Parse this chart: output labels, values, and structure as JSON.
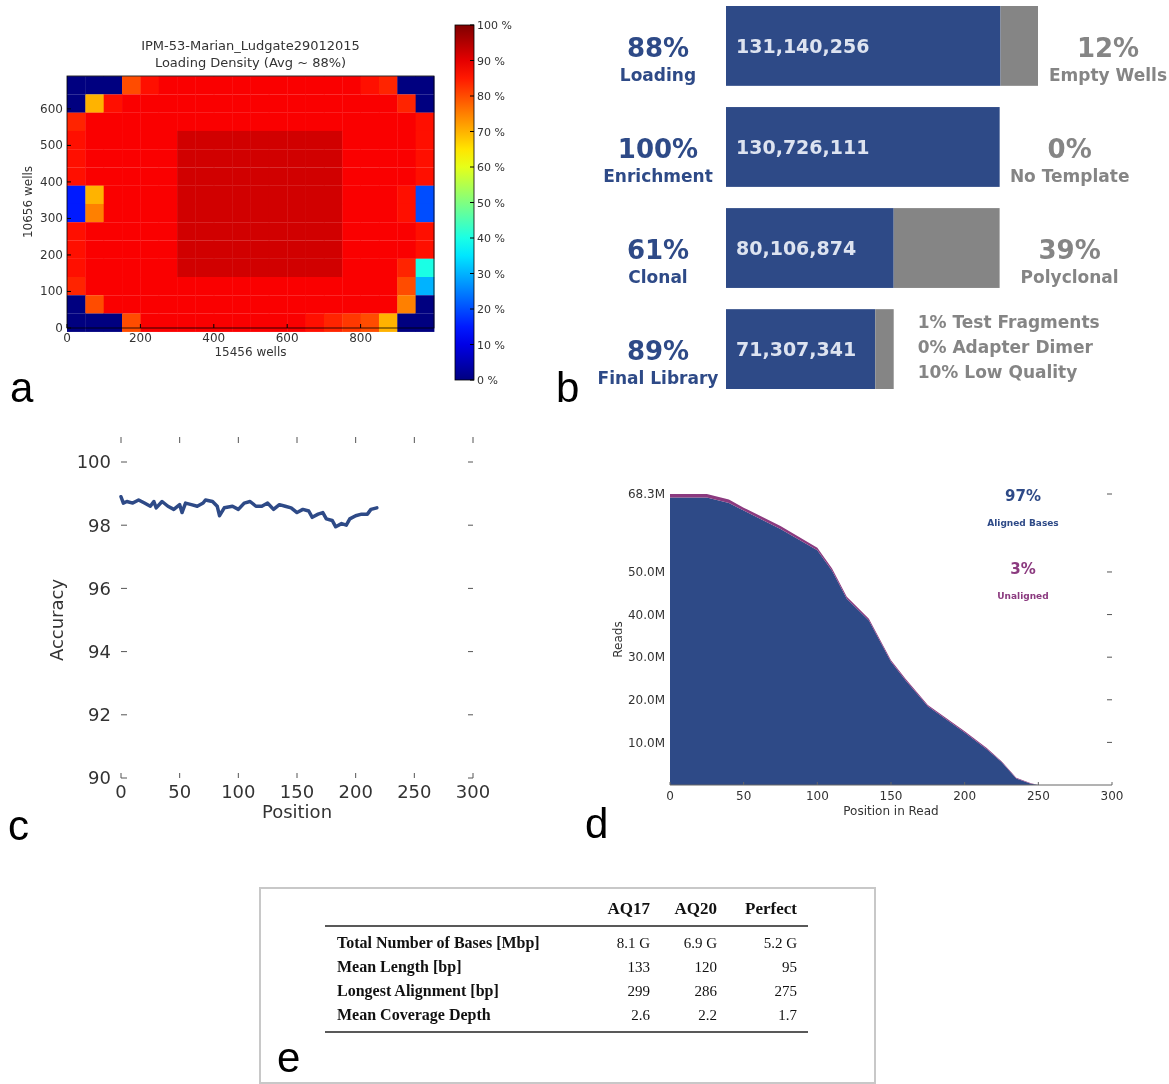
{
  "chart_data": [
    {
      "type": "heatmap",
      "title": "IPM-53-Marian_Ludgate29012015\nLoading Density (Avg ~ 88%)",
      "xlabel": "15456 wells",
      "ylabel": "10656 wells",
      "annotations": [
        "a"
      ],
      "x": [
        25,
        75,
        125,
        175,
        225,
        275,
        325,
        375,
        425,
        475,
        525,
        575,
        625,
        675,
        725,
        775,
        825,
        875,
        925,
        975
      ],
      "y": [
        665,
        615,
        565,
        515,
        465,
        415,
        365,
        315,
        265,
        215,
        165,
        115,
        65,
        15
      ],
      "xlim": [
        0,
        1000
      ],
      "xticks": [
        0,
        200,
        400,
        600,
        800
      ],
      "ylim": [
        0,
        690
      ],
      "yticks": [
        0,
        100,
        200,
        300,
        400,
        500,
        600
      ],
      "clim": [
        0,
        100
      ],
      "cticks": [
        {
          "value": 0,
          "label": "0 %"
        },
        {
          "value": 10,
          "label": "10 %"
        },
        {
          "value": 20,
          "label": "20 %"
        },
        {
          "value": 30,
          "label": "30 %"
        },
        {
          "value": 40,
          "label": "40 %"
        },
        {
          "value": 50,
          "label": "50 %"
        },
        {
          "value": 60,
          "label": "60 %"
        },
        {
          "value": 70,
          "label": "70 %"
        },
        {
          "value": 80,
          "label": "80 %"
        },
        {
          "value": 90,
          "label": "90 %"
        },
        {
          "value": 100,
          "label": "100 %"
        }
      ],
      "cells": [
        [
          0,
          0,
          0,
          80,
          86,
          88,
          88,
          88,
          88,
          88,
          88,
          88,
          88,
          88,
          88,
          88,
          86,
          84,
          0,
          0
        ],
        [
          0,
          70,
          86,
          88,
          88,
          88,
          88,
          88,
          88,
          88,
          88,
          88,
          88,
          88,
          88,
          88,
          88,
          88,
          84,
          0
        ],
        [
          84,
          88,
          88,
          88,
          88,
          88,
          88,
          88,
          88,
          88,
          88,
          88,
          88,
          88,
          88,
          88,
          88,
          88,
          88,
          86
        ],
        [
          86,
          88,
          88,
          88,
          88,
          88,
          92,
          92,
          92,
          92,
          92,
          92,
          92,
          92,
          92,
          88,
          88,
          88,
          88,
          86
        ],
        [
          86,
          88,
          88,
          88,
          88,
          88,
          92,
          92,
          92,
          92,
          92,
          92,
          92,
          92,
          92,
          88,
          88,
          88,
          88,
          86
        ],
        [
          86,
          88,
          88,
          88,
          88,
          88,
          92,
          92,
          92,
          92,
          92,
          92,
          92,
          92,
          92,
          88,
          88,
          88,
          88,
          86
        ],
        [
          15,
          70,
          88,
          88,
          88,
          88,
          92,
          92,
          92,
          92,
          92,
          92,
          92,
          92,
          92,
          88,
          88,
          88,
          86,
          20
        ],
        [
          15,
          75,
          88,
          88,
          88,
          88,
          92,
          92,
          92,
          92,
          92,
          92,
          92,
          92,
          92,
          88,
          88,
          88,
          86,
          20
        ],
        [
          86,
          88,
          88,
          88,
          88,
          88,
          92,
          92,
          92,
          92,
          92,
          92,
          92,
          92,
          92,
          88,
          88,
          88,
          88,
          86
        ],
        [
          86,
          88,
          88,
          88,
          88,
          88,
          92,
          92,
          92,
          92,
          92,
          92,
          92,
          92,
          92,
          88,
          88,
          88,
          88,
          86
        ],
        [
          86,
          88,
          88,
          88,
          88,
          88,
          92,
          92,
          92,
          92,
          92,
          92,
          92,
          92,
          92,
          88,
          88,
          88,
          84,
          40
        ],
        [
          84,
          88,
          88,
          88,
          88,
          88,
          88,
          88,
          88,
          88,
          88,
          88,
          88,
          88,
          88,
          88,
          88,
          88,
          80,
          30
        ],
        [
          0,
          80,
          88,
          88,
          88,
          88,
          88,
          88,
          88,
          88,
          88,
          88,
          88,
          88,
          88,
          88,
          88,
          88,
          75,
          0
        ],
        [
          0,
          0,
          0,
          80,
          88,
          88,
          88,
          88,
          88,
          88,
          88,
          88,
          88,
          86,
          84,
          82,
          80,
          70,
          0,
          0
        ]
      ]
    },
    {
      "type": "bar",
      "orientation": "horizontal",
      "stacked": true,
      "categories": [
        "Loading",
        "Enrichment",
        "Clonal",
        "Final Library"
      ],
      "series": [
        {
          "color": "#2e4a87",
          "values": [
            131140256,
            130726111,
            80106874,
            71307341
          ],
          "value_labels": [
            "131,140,256",
            "130,726,111",
            "80,106,874",
            "71,307,341"
          ]
        },
        {
          "color": "#858585",
          "values": [
            17900000,
            0,
            50600000,
            8800000
          ]
        }
      ],
      "annotations": [
        "b",
        {
          "text": "88%",
          "x": 0,
          "y": "Loading"
        },
        {
          "text": "100%",
          "x": 0,
          "y": "Enrichment"
        },
        {
          "text": "61%",
          "x": 0,
          "y": "Clonal"
        },
        {
          "text": "89%",
          "x": 0,
          "y": "Final Library"
        },
        {
          "text": "12%",
          "x": 149040256,
          "y": "Loading"
        },
        {
          "text": "Empty Wells",
          "x": 149040256,
          "y": "Loading"
        },
        {
          "text": "0%",
          "x": 130726111,
          "y": "Enrichment"
        },
        {
          "text": "No Template",
          "x": 130726111,
          "y": "Enrichment"
        },
        {
          "text": "39%",
          "x": 130706874,
          "y": "Clonal"
        },
        {
          "text": "Polyclonal",
          "x": 130706874,
          "y": "Clonal"
        },
        "1% Test Fragments",
        "0% Adapter Dimer",
        "10% Low Quality"
      ]
    },
    {
      "type": "line",
      "xlabel": "Position",
      "ylabel": "Accuracy",
      "annotations": [
        "c"
      ],
      "xlim": [
        0,
        300
      ],
      "xticks": [
        0,
        50,
        100,
        150,
        200,
        250,
        300
      ],
      "ylim": [
        90,
        100
      ],
      "yticks": [
        90,
        92,
        94,
        96,
        98,
        100
      ],
      "x": [
        0,
        2,
        5,
        10,
        15,
        20,
        25,
        28,
        30,
        35,
        40,
        45,
        50,
        52,
        55,
        60,
        65,
        70,
        72,
        78,
        82,
        84,
        88,
        95,
        100,
        105,
        110,
        115,
        120,
        125,
        130,
        135,
        140,
        145,
        150,
        155,
        160,
        163,
        168,
        172,
        175,
        180,
        183,
        188,
        192,
        195,
        200,
        205,
        210,
        213,
        218
      ],
      "series": [
        {
          "color": "#2e4a87",
          "values": [
            98.9,
            98.7,
            98.75,
            98.7,
            98.8,
            98.7,
            98.6,
            98.75,
            98.55,
            98.75,
            98.6,
            98.5,
            98.65,
            98.4,
            98.7,
            98.65,
            98.6,
            98.7,
            98.8,
            98.75,
            98.6,
            98.3,
            98.55,
            98.6,
            98.5,
            98.7,
            98.75,
            98.6,
            98.6,
            98.7,
            98.5,
            98.65,
            98.6,
            98.55,
            98.4,
            98.5,
            98.45,
            98.25,
            98.35,
            98.4,
            98.2,
            98.15,
            97.95,
            98.05,
            98.0,
            98.2,
            98.3,
            98.35,
            98.35,
            98.5,
            98.55
          ]
        }
      ]
    },
    {
      "type": "area",
      "stacked": true,
      "xlabel": "Position in Read",
      "ylabel": "Reads",
      "legend": "top right",
      "annotations": [
        "d",
        "97%",
        "3%"
      ],
      "xlim": [
        0,
        300
      ],
      "xticks": [
        0,
        50,
        100,
        150,
        200,
        250,
        300
      ],
      "ylim": [
        0,
        68.3
      ],
      "yticks": [
        {
          "value": 10,
          "label": "10.0M"
        },
        {
          "value": 20,
          "label": "20.0M"
        },
        {
          "value": 30,
          "label": "30.0M"
        },
        {
          "value": 40,
          "label": "40.0M"
        },
        {
          "value": 50,
          "label": "50.0M"
        },
        {
          "value": 68.3,
          "label": "68.3M"
        }
      ],
      "x": [
        0,
        25,
        40,
        50,
        75,
        100,
        110,
        120,
        135,
        150,
        160,
        175,
        200,
        215,
        225,
        235,
        245,
        250,
        300
      ],
      "series": [
        {
          "name": "Aligned Bases",
          "color": "#2e4a87",
          "values": [
            67.5,
            67.5,
            66.2,
            64.4,
            60.1,
            55.1,
            50.3,
            43.7,
            38.6,
            28.9,
            24.5,
            18.5,
            12.3,
            8.4,
            5.4,
            1.5,
            0.3,
            0,
            0
          ]
        },
        {
          "name": "Unaligned",
          "color": "#8b3a7f",
          "values": [
            0.8,
            0.8,
            0.8,
            0.7,
            0.7,
            0.6,
            0.5,
            0.5,
            0.4,
            0.4,
            0.4,
            0.3,
            0.3,
            0.3,
            0.2,
            0.2,
            0.1,
            0,
            0
          ]
        }
      ]
    },
    {
      "type": "other",
      "annotations": [
        "e"
      ],
      "categories": [
        "AQ17",
        "AQ20",
        "Perfect"
      ],
      "y_categories": [
        "Total Number of Bases [Mbp]",
        "Mean Length [bp]",
        "Longest Alignment [bp]",
        "Mean Coverage Depth"
      ],
      "cell_labels": [
        [
          "8.1 G",
          "6.9 G",
          "5.2 G"
        ],
        [
          "133",
          "120",
          "95"
        ],
        [
          "299",
          "286",
          "275"
        ],
        [
          "2.6",
          "2.2",
          "1.7"
        ]
      ]
    }
  ]
}
